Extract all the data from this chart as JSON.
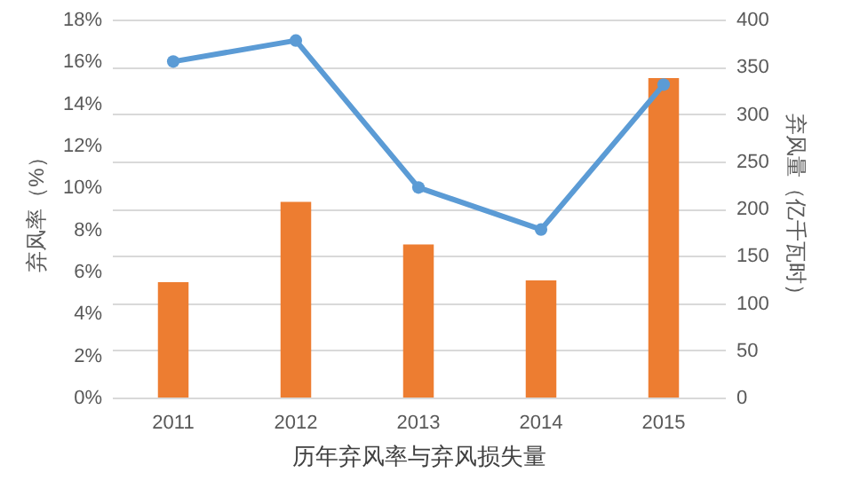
{
  "chart_data": {
    "type": "bar",
    "xlabel": "历年弃风率与弃风损失量",
    "ylabel": "弃风率（%）",
    "y2label": "弃风量（亿千瓦时）",
    "categories": [
      "2011",
      "2012",
      "2013",
      "2014",
      "2015"
    ],
    "series": [
      {
        "axis": "y2",
        "color": "#ed7d31",
        "values": [
          122,
          207,
          162,
          124,
          338
        ]
      },
      {
        "type": "line",
        "axis": "y",
        "color": "#5b9bd5",
        "values": [
          16,
          17,
          10,
          8,
          14.9
        ]
      }
    ],
    "ylim": [
      0,
      18
    ],
    "yticks": [
      {
        "value": 0,
        "label": "0%"
      },
      {
        "value": 2,
        "label": "2%"
      },
      {
        "value": 4,
        "label": "4%"
      },
      {
        "value": 6,
        "label": "6%"
      },
      {
        "value": 8,
        "label": "8%"
      },
      {
        "value": 10,
        "label": "10%"
      },
      {
        "value": 12,
        "label": "12%"
      },
      {
        "value": 14,
        "label": "14%"
      },
      {
        "value": 16,
        "label": "16%"
      },
      {
        "value": 18,
        "label": "18%"
      }
    ],
    "y2lim": [
      0,
      400
    ],
    "y2ticks": [
      0,
      50,
      100,
      150,
      200,
      250,
      300,
      350,
      400
    ],
    "grid": "y",
    "marker": "circle",
    "line_style": "solid"
  }
}
